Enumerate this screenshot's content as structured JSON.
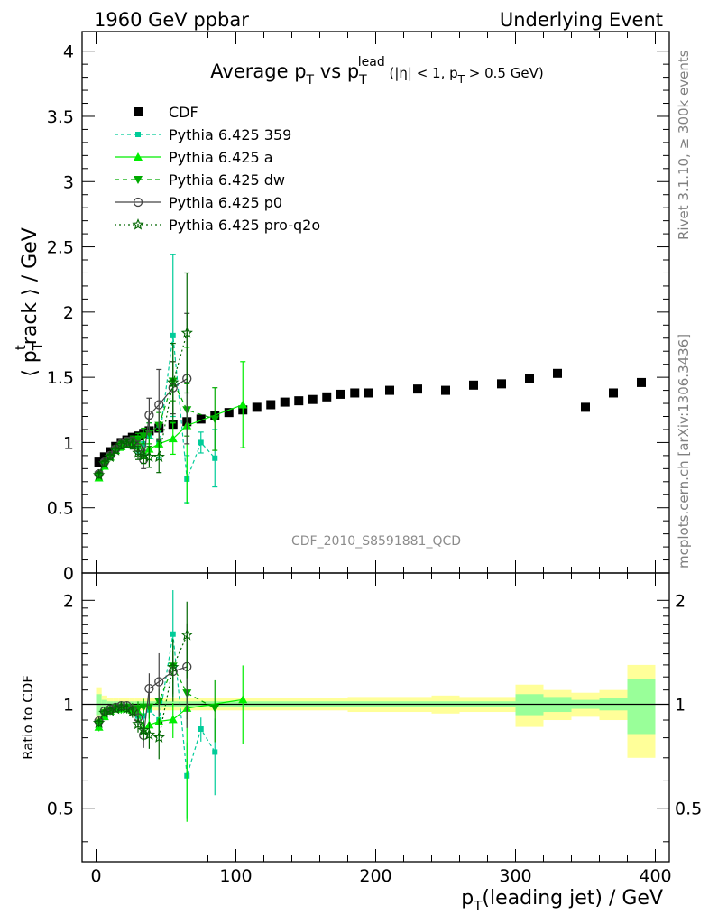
{
  "header": {
    "left": "1960 GeV ppbar",
    "right": "Underlying Event"
  },
  "side_labels": {
    "rivet": "Rivet 3.1.10, ≥ 300k events",
    "mcplots": "mcplots.cern.ch [arXiv:1306.3436]"
  },
  "watermark": "CDF_2010_S8591881_QCD",
  "chart_data": [
    {
      "type": "scatter",
      "title": {
        "a": "Average p",
        "b": "T",
        "c": " vs p",
        "d": "T",
        "e": "lead",
        "f": " (|η| < 1, p",
        "g": "T",
        "h": " > 0.5 GeV)"
      },
      "ylabel": {
        "a": "⟨ p",
        "b": "T",
        "c": "t",
        "d": "rack ⟩ / GeV"
      },
      "xlim": [
        -10,
        410
      ],
      "ylim": [
        0,
        4.15
      ],
      "yticks": [
        "0",
        "0.5",
        "1",
        "1.5",
        "2",
        "2.5",
        "3",
        "3.5",
        "4"
      ],
      "legend_position": "top-left",
      "series": [
        {
          "name": "CDF",
          "color": "#000000",
          "marker": "square",
          "dash": "none",
          "x": [
            2,
            6,
            10,
            14,
            18,
            22,
            26,
            30,
            34,
            38,
            45,
            55,
            65,
            75,
            85,
            95,
            105,
            115,
            125,
            135,
            145,
            155,
            165,
            175,
            185,
            195,
            210,
            230,
            250,
            270,
            290,
            310,
            330,
            350,
            370,
            390
          ],
          "y": [
            0.85,
            0.89,
            0.93,
            0.97,
            1.0,
            1.02,
            1.04,
            1.05,
            1.07,
            1.09,
            1.11,
            1.14,
            1.16,
            1.18,
            1.21,
            1.23,
            1.25,
            1.27,
            1.29,
            1.31,
            1.32,
            1.33,
            1.35,
            1.37,
            1.38,
            1.38,
            1.4,
            1.41,
            1.4,
            1.44,
            1.45,
            1.49,
            1.53,
            1.27,
            1.38,
            1.46
          ]
        },
        {
          "name": "Pythia 6.425 359",
          "color": "#00cc99",
          "marker": "smallsquare",
          "dash": "4,3",
          "x": [
            2,
            6,
            10,
            14,
            18,
            22,
            26,
            30,
            34,
            38,
            45,
            55,
            65,
            75,
            85
          ],
          "y": [
            0.74,
            0.83,
            0.89,
            0.94,
            0.98,
            1.0,
            1.0,
            0.97,
            0.99,
            1.05,
            1.0,
            1.82,
            0.72,
            1.0,
            0.88
          ],
          "err": [
            0.02,
            0.02,
            0.02,
            0.02,
            0.03,
            0.03,
            0.04,
            0.05,
            0.08,
            0.1,
            0.12,
            0.62,
            0.18,
            0.08,
            0.22
          ]
        },
        {
          "name": "Pythia 6.425 a",
          "color": "#00ee00",
          "marker": "triangle",
          "dash": "none",
          "x": [
            2,
            6,
            10,
            14,
            18,
            22,
            26,
            30,
            34,
            38,
            45,
            55,
            65,
            105
          ],
          "y": [
            0.73,
            0.82,
            0.89,
            0.94,
            0.97,
            0.99,
            1.0,
            1.0,
            0.9,
            0.95,
            0.99,
            1.03,
            1.13,
            1.29
          ],
          "err": [
            0.02,
            0.02,
            0.02,
            0.02,
            0.03,
            0.03,
            0.04,
            0.05,
            0.06,
            0.08,
            0.1,
            0.12,
            0.6,
            0.33
          ]
        },
        {
          "name": "Pythia 6.425 dw",
          "color": "#00aa00",
          "marker": "triangledown",
          "dash": "5,4",
          "x": [
            2,
            6,
            10,
            14,
            18,
            22,
            26,
            30,
            34,
            38,
            45,
            55,
            65,
            85
          ],
          "y": [
            0.75,
            0.84,
            0.89,
            0.95,
            0.98,
            1.0,
            1.01,
            1.02,
            1.05,
            1.07,
            1.13,
            1.47,
            1.25,
            1.18
          ],
          "err": [
            0.02,
            0.02,
            0.02,
            0.02,
            0.03,
            0.03,
            0.04,
            0.05,
            0.06,
            0.08,
            0.1,
            0.15,
            0.2,
            0.24
          ]
        },
        {
          "name": "Pythia 6.425 p0",
          "color": "#444444",
          "marker": "circle",
          "dash": "none",
          "x": [
            2,
            6,
            10,
            14,
            18,
            22,
            26,
            30,
            34,
            38,
            45,
            55,
            65
          ],
          "y": [
            0.76,
            0.85,
            0.9,
            0.95,
            0.99,
            1.01,
            1.0,
            0.96,
            0.87,
            1.21,
            1.29,
            1.42,
            1.49
          ],
          "err": [
            0.02,
            0.02,
            0.02,
            0.02,
            0.03,
            0.03,
            0.04,
            0.05,
            0.07,
            0.13,
            0.27,
            0.2,
            0.5
          ]
        },
        {
          "name": "Pythia 6.425 pro-q2o",
          "color": "#006600",
          "marker": "star",
          "dash": "2,3",
          "x": [
            2,
            6,
            10,
            14,
            18,
            22,
            26,
            30,
            34,
            38,
            45,
            55,
            65
          ],
          "y": [
            0.75,
            0.84,
            0.89,
            0.94,
            0.98,
            0.99,
            0.99,
            0.92,
            0.9,
            0.89,
            0.89,
            1.46,
            1.84
          ],
          "err": [
            0.02,
            0.02,
            0.02,
            0.02,
            0.03,
            0.03,
            0.04,
            0.05,
            0.06,
            0.08,
            0.12,
            0.3,
            0.46
          ]
        }
      ]
    },
    {
      "type": "scatter",
      "ylabel": "Ratio to CDF",
      "xlabel": {
        "a": "p",
        "b": "T",
        "c": "(leading jet) / GeV"
      },
      "xlim": [
        -10,
        410
      ],
      "ylim": [
        0.35,
        2.4
      ],
      "ylog": true,
      "yticks": [
        "0.5",
        "1",
        "2"
      ],
      "xticks": [
        "0",
        "100",
        "200",
        "300",
        "400"
      ],
      "reference_line": 1,
      "band_colors": {
        "stat": "#99ff99",
        "total": "#ffff99"
      },
      "bands": {
        "edges": [
          0,
          4,
          8,
          12,
          16,
          20,
          24,
          28,
          32,
          36,
          40,
          50,
          60,
          70,
          80,
          90,
          100,
          110,
          120,
          130,
          140,
          150,
          160,
          170,
          180,
          190,
          200,
          220,
          240,
          260,
          280,
          300,
          320,
          340,
          360,
          380,
          400
        ],
        "stat": [
          0.07,
          0.03,
          0.02,
          0.02,
          0.02,
          0.02,
          0.02,
          0.02,
          0.02,
          0.02,
          0.02,
          0.02,
          0.02,
          0.02,
          0.02,
          0.02,
          0.02,
          0.02,
          0.02,
          0.02,
          0.02,
          0.02,
          0.02,
          0.02,
          0.02,
          0.02,
          0.02,
          0.02,
          0.02,
          0.02,
          0.02,
          0.07,
          0.05,
          0.03,
          0.04,
          0.18
        ],
        "total": [
          0.12,
          0.06,
          0.04,
          0.04,
          0.04,
          0.04,
          0.04,
          0.04,
          0.04,
          0.04,
          0.04,
          0.04,
          0.04,
          0.04,
          0.04,
          0.04,
          0.04,
          0.04,
          0.04,
          0.04,
          0.04,
          0.04,
          0.04,
          0.04,
          0.05,
          0.05,
          0.05,
          0.05,
          0.06,
          0.05,
          0.05,
          0.14,
          0.1,
          0.08,
          0.1,
          0.3
        ]
      }
    }
  ]
}
